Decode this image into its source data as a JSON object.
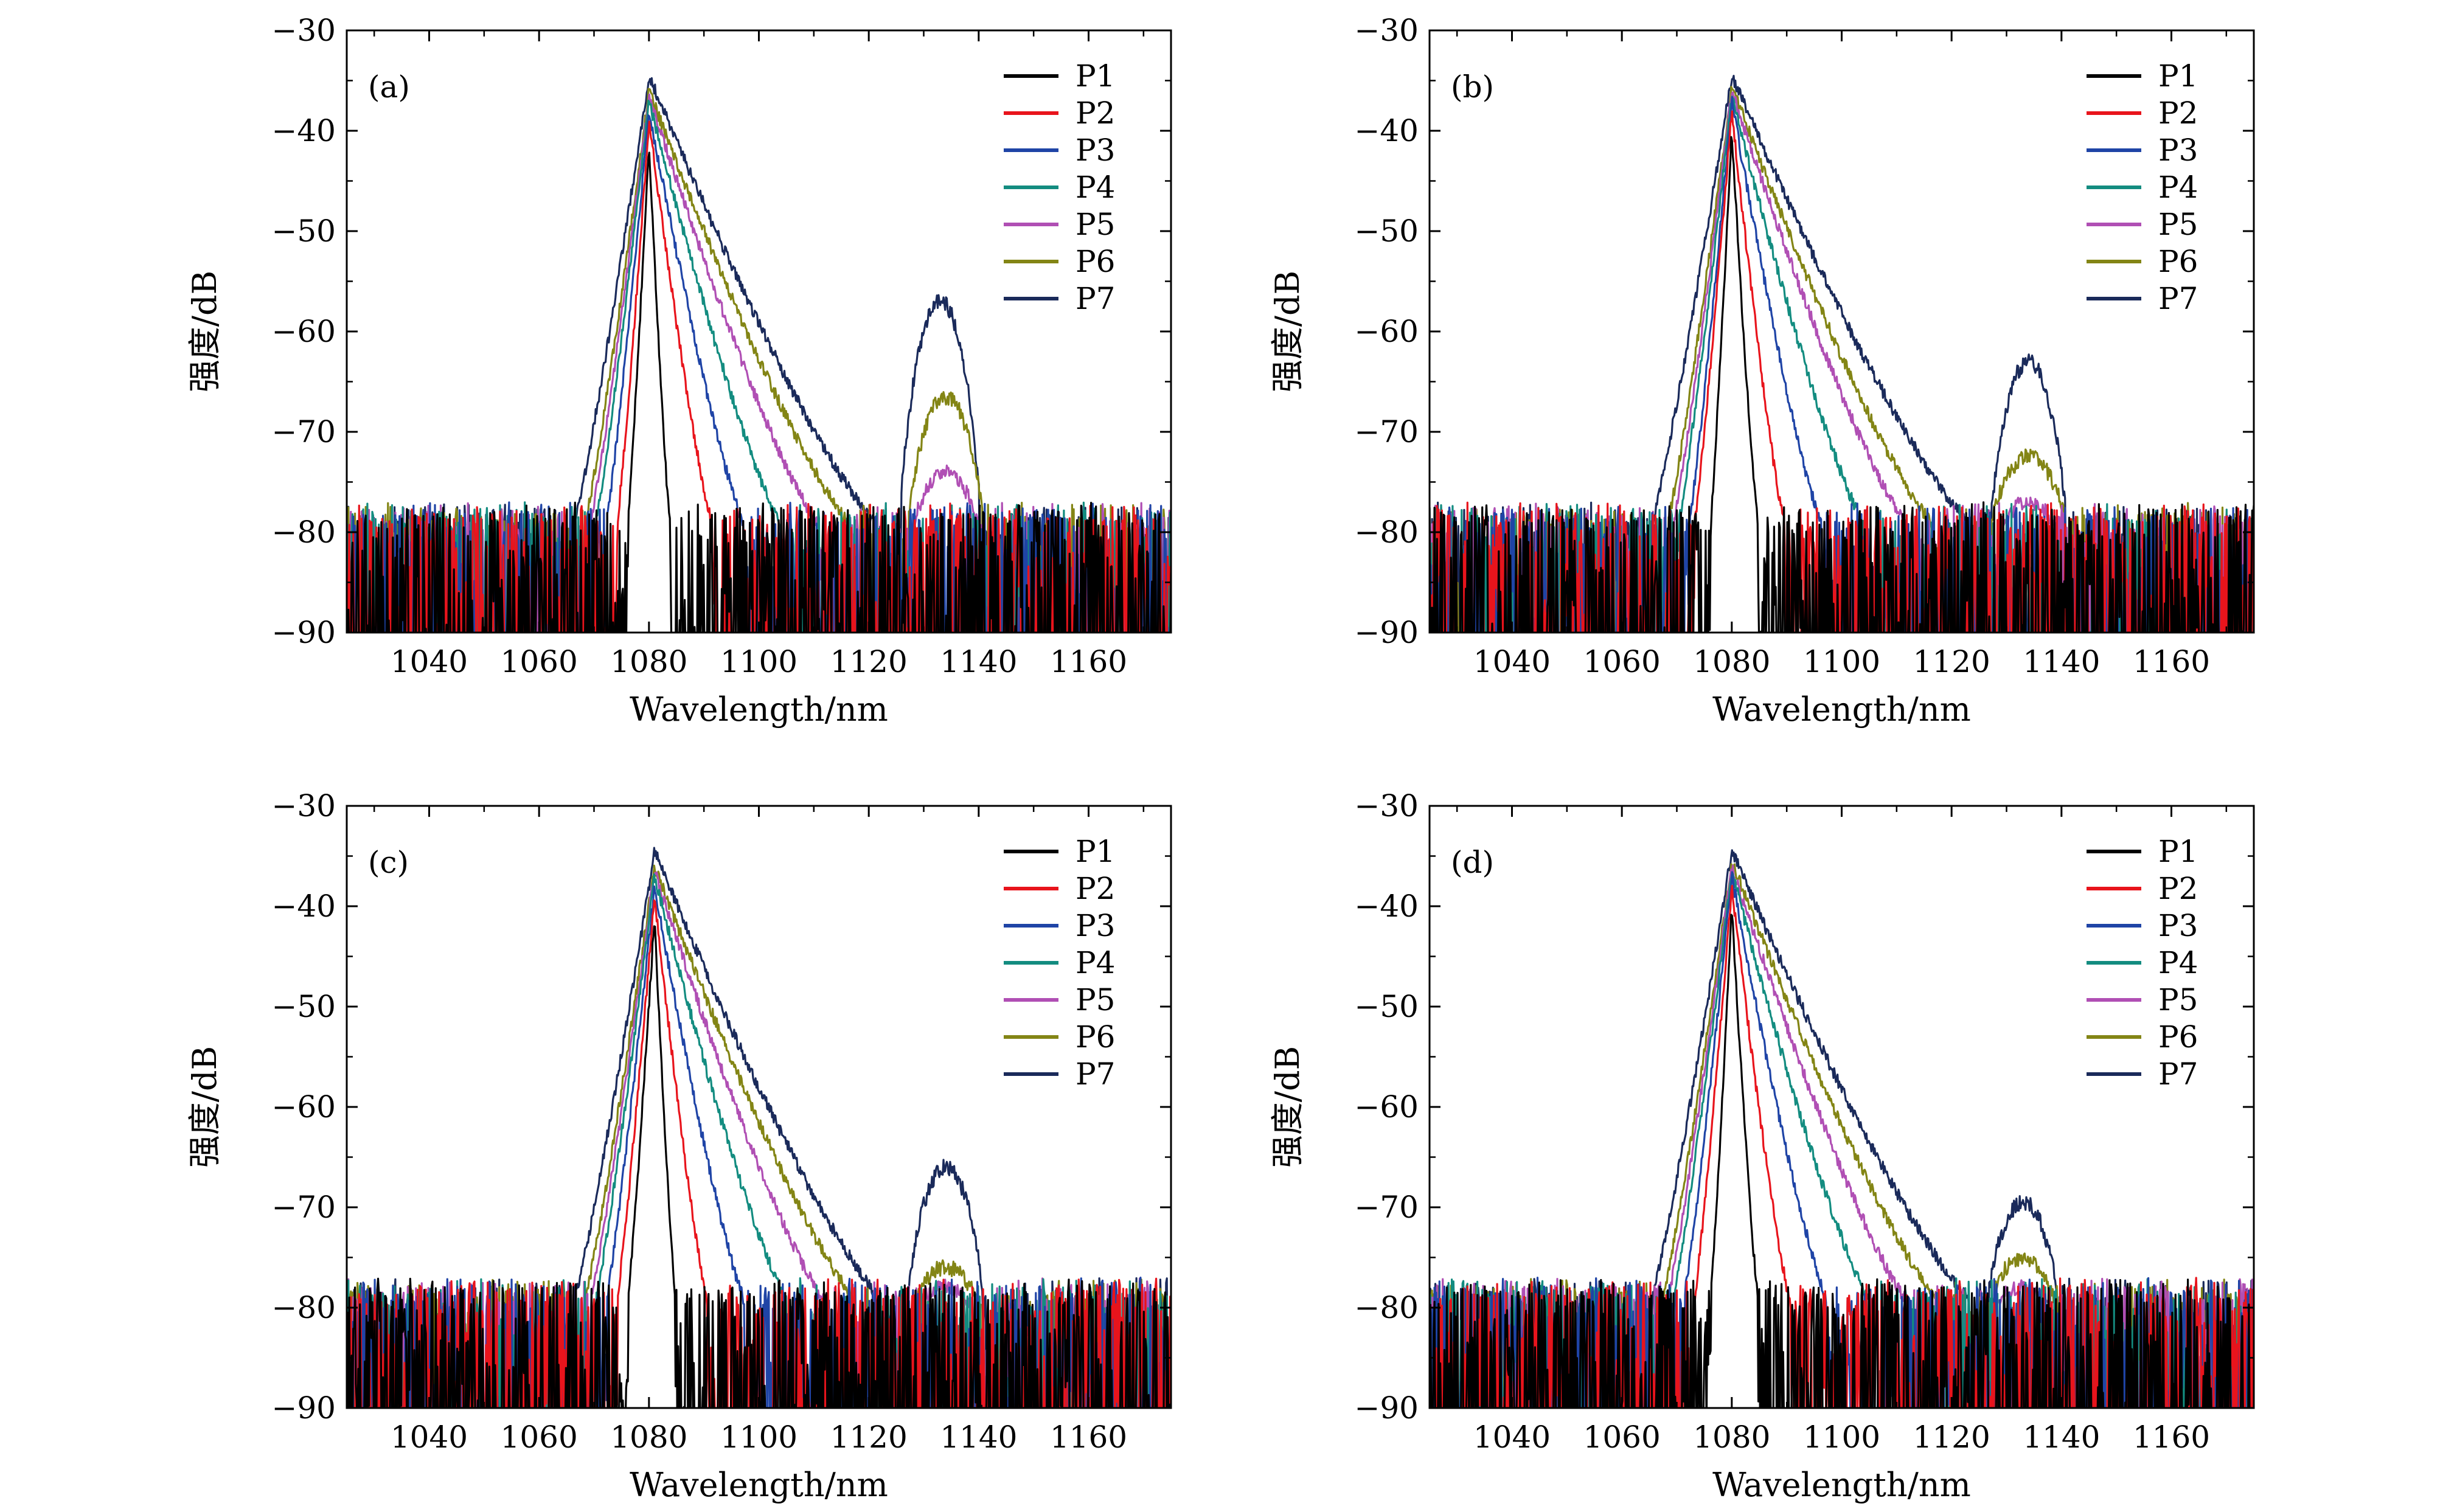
{
  "figure": {
    "panels": [
      "(a)",
      "(b)",
      "(c)",
      "(d)"
    ]
  },
  "colors": {
    "P1": "#000000",
    "P2": "#e8141c",
    "P3": "#1f44a6",
    "P4": "#138c80",
    "P5": "#b04fb4",
    "P6": "#838515",
    "P7": "#1a2a5a"
  },
  "chart_data": [
    {
      "type": "line",
      "panel_label": "(a)",
      "xlabel": "Wavelength/nm",
      "ylabel": "强度/dB",
      "xlim": [
        1025,
        1175
      ],
      "ylim": [
        -90,
        -30
      ],
      "xticks": [
        1040,
        1060,
        1080,
        1100,
        1120,
        1140,
        1160
      ],
      "yticks": [
        -30,
        -40,
        -50,
        -60,
        -70,
        -80,
        -90
      ],
      "xtick_labels": [
        "1040",
        "1060",
        "1080",
        "1100",
        "1120",
        "1140",
        "1160"
      ],
      "ytick_labels": [
        "−30",
        "−40",
        "−50",
        "−60",
        "−70",
        "−80",
        "−90"
      ],
      "legend_position": "top-right",
      "grid": false,
      "noise_floor": -80,
      "series": [
        {
          "name": "P1",
          "peak_x": 1080,
          "peak_y": -41,
          "left_floor_x": 1076,
          "right_floor_x": 1084
        },
        {
          "name": "P2",
          "peak_x": 1080,
          "peak_y": -39,
          "left_floor_x": 1074,
          "right_floor_x": 1092
        },
        {
          "name": "P3",
          "peak_x": 1080,
          "peak_y": -38,
          "left_floor_x": 1072,
          "right_floor_x": 1098
        },
        {
          "name": "P4",
          "peak_x": 1080,
          "peak_y": -37,
          "left_floor_x": 1070,
          "right_floor_x": 1105
        },
        {
          "name": "P5",
          "peak_x": 1080,
          "peak_y": -36.5,
          "left_floor_x": 1069,
          "right_floor_x": 1112,
          "second_peak_x": 1134,
          "second_peak_y": -74,
          "second_width": 6
        },
        {
          "name": "P6",
          "peak_x": 1080,
          "peak_y": -36,
          "left_floor_x": 1068,
          "right_floor_x": 1118,
          "second_peak_x": 1134,
          "second_peak_y": -66.5,
          "second_width": 7
        },
        {
          "name": "P7",
          "peak_x": 1080,
          "peak_y": -34.5,
          "left_floor_x": 1066,
          "right_floor_x": 1123,
          "second_peak_x": 1133,
          "second_peak_y": -57,
          "second_width": 7.5
        }
      ]
    },
    {
      "type": "line",
      "panel_label": "(b)",
      "xlabel": "Wavelength/nm",
      "ylabel": "强度/dB",
      "xlim": [
        1025,
        1175
      ],
      "ylim": [
        -90,
        -30
      ],
      "xticks": [
        1040,
        1060,
        1080,
        1100,
        1120,
        1140,
        1160
      ],
      "yticks": [
        -30,
        -40,
        -50,
        -60,
        -70,
        -80,
        -90
      ],
      "xtick_labels": [
        "1040",
        "1060",
        "1080",
        "1100",
        "1120",
        "1140",
        "1160"
      ],
      "ytick_labels": [
        "−30",
        "−40",
        "−50",
        "−60",
        "−70",
        "−80",
        "−90"
      ],
      "legend_position": "top-right",
      "grid": false,
      "noise_floor": -80,
      "series": [
        {
          "name": "P1",
          "peak_x": 1080,
          "peak_y": -40,
          "left_floor_x": 1076,
          "right_floor_x": 1085
        },
        {
          "name": "P2",
          "peak_x": 1080,
          "peak_y": -38,
          "left_floor_x": 1073,
          "right_floor_x": 1090
        },
        {
          "name": "P3",
          "peak_x": 1080,
          "peak_y": -37,
          "left_floor_x": 1072,
          "right_floor_x": 1097
        },
        {
          "name": "P4",
          "peak_x": 1080,
          "peak_y": -36.5,
          "left_floor_x": 1070,
          "right_floor_x": 1105
        },
        {
          "name": "P5",
          "peak_x": 1080,
          "peak_y": -36,
          "left_floor_x": 1069,
          "right_floor_x": 1113,
          "second_peak_x": 1134,
          "second_peak_y": -77,
          "second_width": 5
        },
        {
          "name": "P6",
          "peak_x": 1080,
          "peak_y": -35.5,
          "left_floor_x": 1068,
          "right_floor_x": 1118,
          "second_peak_x": 1134,
          "second_peak_y": -72.5,
          "second_width": 7
        },
        {
          "name": "P7",
          "peak_x": 1080,
          "peak_y": -34.5,
          "left_floor_x": 1065,
          "right_floor_x": 1125,
          "second_peak_x": 1134,
          "second_peak_y": -63,
          "second_width": 7
        }
      ]
    },
    {
      "type": "line",
      "panel_label": "(c)",
      "xlabel": "Wavelength/nm",
      "ylabel": "强度/dB",
      "xlim": [
        1025,
        1175
      ],
      "ylim": [
        -90,
        -30
      ],
      "xticks": [
        1040,
        1060,
        1080,
        1100,
        1120,
        1140,
        1160
      ],
      "yticks": [
        -30,
        -40,
        -50,
        -60,
        -70,
        -80,
        -90
      ],
      "xtick_labels": [
        "1040",
        "1060",
        "1080",
        "1100",
        "1120",
        "1140",
        "1160"
      ],
      "ytick_labels": [
        "−30",
        "−40",
        "−50",
        "−60",
        "−70",
        "−80",
        "−90"
      ],
      "legend_position": "top-right",
      "grid": false,
      "noise_floor": -80,
      "series": [
        {
          "name": "P1",
          "peak_x": 1081,
          "peak_y": -41,
          "left_floor_x": 1076,
          "right_floor_x": 1085
        },
        {
          "name": "P2",
          "peak_x": 1081,
          "peak_y": -39,
          "left_floor_x": 1074,
          "right_floor_x": 1091
        },
        {
          "name": "P3",
          "peak_x": 1081,
          "peak_y": -38,
          "left_floor_x": 1072,
          "right_floor_x": 1098
        },
        {
          "name": "P4",
          "peak_x": 1081,
          "peak_y": -37,
          "left_floor_x": 1070,
          "right_floor_x": 1106
        },
        {
          "name": "P5",
          "peak_x": 1081,
          "peak_y": -36.5,
          "left_floor_x": 1069,
          "right_floor_x": 1113,
          "second_peak_x": 1134,
          "second_peak_y": -78,
          "second_width": 5
        },
        {
          "name": "P6",
          "peak_x": 1081,
          "peak_y": -36,
          "left_floor_x": 1068,
          "right_floor_x": 1119,
          "second_peak_x": 1134,
          "second_peak_y": -76,
          "second_width": 6
        },
        {
          "name": "P7",
          "peak_x": 1081,
          "peak_y": -34.5,
          "left_floor_x": 1066,
          "right_floor_x": 1124,
          "second_peak_x": 1134,
          "second_peak_y": -66,
          "second_width": 7
        }
      ]
    },
    {
      "type": "line",
      "panel_label": "(d)",
      "xlabel": "Wavelength/nm",
      "ylabel": "强度/dB",
      "xlim": [
        1025,
        1175
      ],
      "ylim": [
        -90,
        -30
      ],
      "xticks": [
        1040,
        1060,
        1080,
        1100,
        1120,
        1140,
        1160
      ],
      "yticks": [
        -30,
        -40,
        -50,
        -60,
        -70,
        -80,
        -90
      ],
      "xtick_labels": [
        "1040",
        "1060",
        "1080",
        "1100",
        "1120",
        "1140",
        "1160"
      ],
      "ytick_labels": [
        "−30",
        "−40",
        "−50",
        "−60",
        "−70",
        "−80",
        "−90"
      ],
      "legend_position": "top-right",
      "grid": false,
      "noise_floor": -80,
      "series": [
        {
          "name": "P1",
          "peak_x": 1080,
          "peak_y": -40,
          "left_floor_x": 1076,
          "right_floor_x": 1085
        },
        {
          "name": "P2",
          "peak_x": 1080,
          "peak_y": -38,
          "left_floor_x": 1073,
          "right_floor_x": 1091
        },
        {
          "name": "P3",
          "peak_x": 1080,
          "peak_y": -37,
          "left_floor_x": 1071,
          "right_floor_x": 1098
        },
        {
          "name": "P4",
          "peak_x": 1080,
          "peak_y": -36.5,
          "left_floor_x": 1069,
          "right_floor_x": 1106
        },
        {
          "name": "P5",
          "peak_x": 1080,
          "peak_y": -36,
          "left_floor_x": 1068,
          "right_floor_x": 1113,
          "second_peak_x": 1133,
          "second_peak_y": -78,
          "second_width": 5
        },
        {
          "name": "P6",
          "peak_x": 1080,
          "peak_y": -35.5,
          "left_floor_x": 1067,
          "right_floor_x": 1119,
          "second_peak_x": 1133,
          "second_peak_y": -75,
          "second_width": 6
        },
        {
          "name": "P7",
          "peak_x": 1080,
          "peak_y": -34.5,
          "left_floor_x": 1065,
          "right_floor_x": 1125,
          "second_peak_x": 1133,
          "second_peak_y": -69.5,
          "second_width": 6.5
        }
      ]
    }
  ]
}
